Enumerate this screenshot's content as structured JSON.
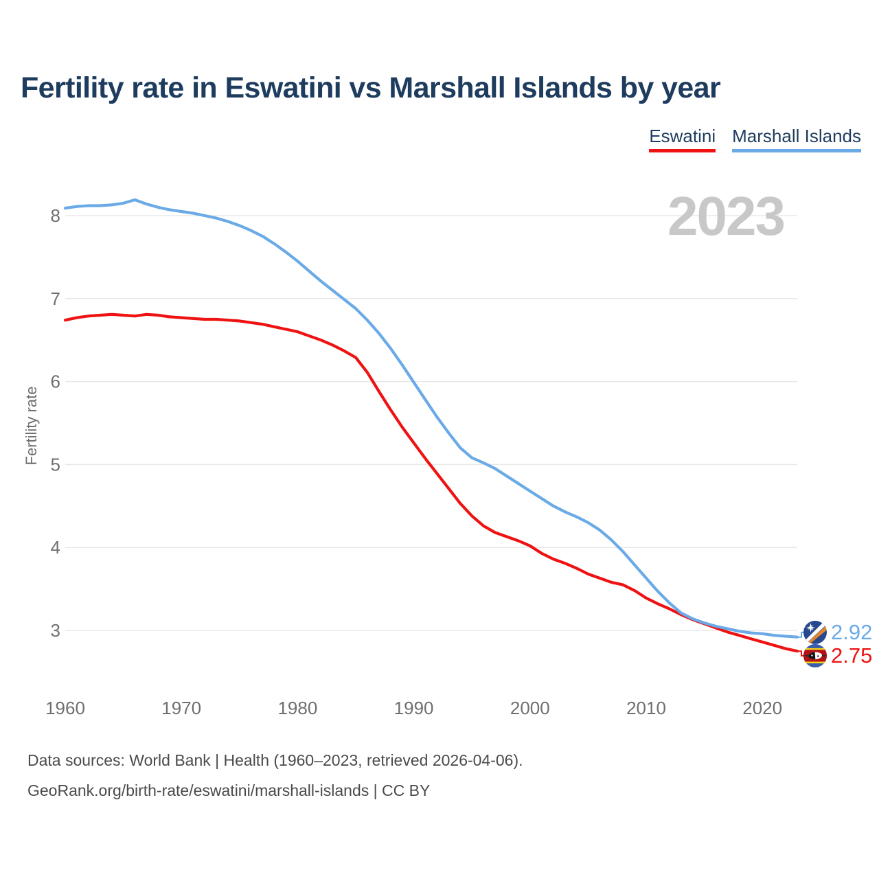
{
  "title": "Fertility rate in Eswatini vs Marshall Islands by year",
  "watermark": "2023",
  "legend": [
    {
      "label": "Eswatini",
      "color": "#ee1312"
    },
    {
      "label": "Marshall Islands",
      "color": "#6aaae6"
    }
  ],
  "y_axis": {
    "label": "Fertility rate",
    "ticks": [
      3,
      4,
      5,
      6,
      7,
      8
    ]
  },
  "x_axis": {
    "ticks": [
      1960,
      1970,
      1980,
      1990,
      2000,
      2010,
      2020
    ]
  },
  "end_labels": [
    {
      "series": "Marshall Islands",
      "value": "2.92",
      "color": "#6aaae6",
      "flag": "marshall-islands-flag"
    },
    {
      "series": "Eswatini",
      "value": "2.75",
      "color": "#ee1312",
      "flag": "eswatini-flag"
    }
  ],
  "footer": {
    "line1": "Data sources: World Bank | Health (1960–2023, retrieved 2026-04-06).",
    "line2": "GeoRank.org/birth-rate/eswatini/marshall-islands | CC BY"
  },
  "chart_data": {
    "type": "line",
    "title": "Fertility rate in Eswatini vs Marshall Islands by year",
    "xlabel": "year",
    "ylabel": "Fertility rate",
    "xlim": [
      1960,
      2023
    ],
    "ylim": [
      2.5,
      8.5
    ],
    "grid": "horizontal",
    "legend_position": "top-right",
    "x": [
      1960,
      1961,
      1962,
      1963,
      1964,
      1965,
      1966,
      1967,
      1968,
      1969,
      1970,
      1971,
      1972,
      1973,
      1974,
      1975,
      1976,
      1977,
      1978,
      1979,
      1980,
      1981,
      1982,
      1983,
      1984,
      1985,
      1986,
      1987,
      1988,
      1989,
      1990,
      1991,
      1992,
      1993,
      1994,
      1995,
      1996,
      1997,
      1998,
      1999,
      2000,
      2001,
      2002,
      2003,
      2004,
      2005,
      2006,
      2007,
      2008,
      2009,
      2010,
      2011,
      2012,
      2013,
      2014,
      2015,
      2016,
      2017,
      2018,
      2019,
      2020,
      2021,
      2022,
      2023
    ],
    "series": [
      {
        "name": "Eswatini",
        "color": "#ee1312",
        "values": [
          6.74,
          6.77,
          6.79,
          6.8,
          6.81,
          6.8,
          6.79,
          6.81,
          6.8,
          6.78,
          6.77,
          6.76,
          6.75,
          6.75,
          6.74,
          6.73,
          6.71,
          6.69,
          6.66,
          6.63,
          6.6,
          6.55,
          6.5,
          6.44,
          6.37,
          6.29,
          6.11,
          5.88,
          5.66,
          5.45,
          5.26,
          5.07,
          4.89,
          4.71,
          4.53,
          4.38,
          4.26,
          4.18,
          4.13,
          4.08,
          4.02,
          3.93,
          3.86,
          3.81,
          3.75,
          3.68,
          3.63,
          3.58,
          3.55,
          3.48,
          3.39,
          3.32,
          3.26,
          3.19,
          3.13,
          3.08,
          3.03,
          2.98,
          2.94,
          2.9,
          2.86,
          2.82,
          2.78,
          2.75
        ]
      },
      {
        "name": "Marshall Islands",
        "color": "#6aaae6",
        "values": [
          8.09,
          8.11,
          8.12,
          8.12,
          8.13,
          8.15,
          8.19,
          8.14,
          8.1,
          8.07,
          8.05,
          8.03,
          8.0,
          7.97,
          7.93,
          7.88,
          7.82,
          7.75,
          7.66,
          7.56,
          7.45,
          7.33,
          7.21,
          7.1,
          6.99,
          6.88,
          6.74,
          6.58,
          6.4,
          6.2,
          5.99,
          5.78,
          5.57,
          5.38,
          5.2,
          5.08,
          5.02,
          4.95,
          4.86,
          4.77,
          4.68,
          4.59,
          4.5,
          4.43,
          4.37,
          4.3,
          4.21,
          4.09,
          3.95,
          3.79,
          3.63,
          3.47,
          3.33,
          3.21,
          3.14,
          3.09,
          3.05,
          3.02,
          2.99,
          2.97,
          2.96,
          2.94,
          2.93,
          2.92
        ]
      }
    ]
  }
}
